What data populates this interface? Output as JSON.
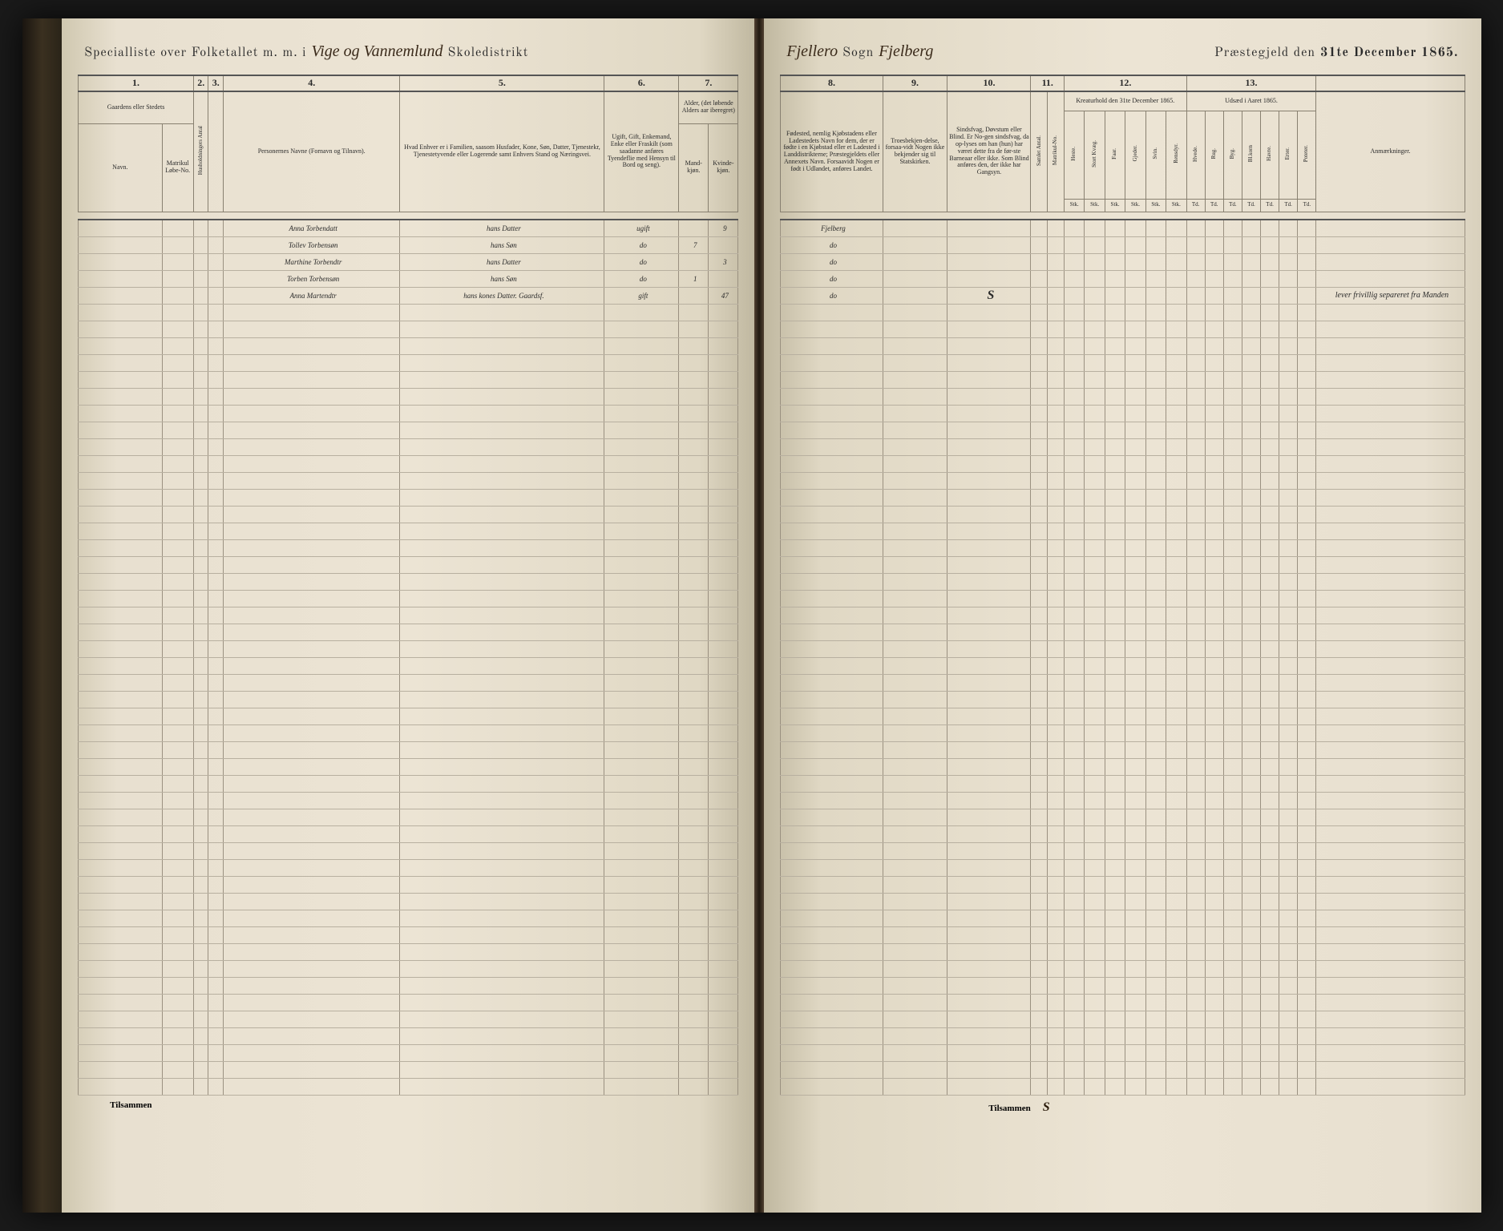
{
  "title": {
    "left_print_1": "Specialliste over Folketallet m. m. i",
    "left_script": "Vige og Vannemlund",
    "left_print_2": "Skoledistrikt",
    "right_script_1": "Fjellero",
    "right_print_1": "Sogn",
    "right_script_2": "Fjelberg",
    "right_print_2": "Præstegjeld den",
    "right_print_3": "31te December 1865."
  },
  "left_cols": {
    "nums": [
      "1.",
      "2.",
      "3.",
      "4.",
      "5.",
      "6.",
      "7."
    ],
    "h1": "Gaardens eller Stedets",
    "h1a": "Navn.",
    "h1b": "Matrikul Løbe-No.",
    "h2": "Husholdningers Antal",
    "h3": "",
    "h4": "Personernes Navne (Fornavn og Tilnavn).",
    "h5": "Hvad Enhver er i Familien, saasom Husfader, Kone, Søn, Datter, Tjenestekr, Tjenestetyvende eller Logerende samt Enhvers Stand og Næringsvei.",
    "h6": "Ugift, Gift, Enkemand, Enke eller Fraskilt (som saadanne anføres Tyendeflie med Hensyn til Bord og seng).",
    "h7_top": "Alder, (det løbende Alders aar iberegret)",
    "h7a": "Mand-kjøn.",
    "h7b": "Kvinde-kjøn."
  },
  "right_cols": {
    "nums": [
      "8.",
      "9.",
      "10.",
      "11.",
      "12.",
      "13."
    ],
    "h8": "Fødested, nemlig Kjøbstadens eller Ladestedets Navn for dem, der er fødte i en Kjøbstad eller et Ladested i Landdistrikterne; Præstegjeldets eller Annexets Navn. Forsaavidt Nogen er født i Udlandet, anføres Landet.",
    "h9": "Troesbekjen-delse, forsaa-vidt Nogen ikke bekjender sig til Statskirken.",
    "h10": "Sindsfvag, Døvstum eller Blind. Er No-gen sindsfvag, da op-lyses om han (hun) har været dette fra de før-ste Barneaar eller ikke. Som Blind anføres den, der ikke har Gangsyn.",
    "h11a": "Samlet Antal.",
    "h11b": "Matrikul-No.",
    "h12": "Kreaturhold den 31te December 1865.",
    "h12_subs": [
      "Heste.",
      "Stort Kvæg.",
      "Faar.",
      "Gjeder.",
      "Svin.",
      "Rensdyr."
    ],
    "h12_sub2": "Stk.",
    "h13": "Udsæd i Aaret 1865.",
    "h13_subs": [
      "Hvede.",
      "Rug.",
      "Byg.",
      "Bl.korn",
      "Havre.",
      "Erter.",
      "Poteter."
    ],
    "h13_sub2": "Td.",
    "h_anm": "Anmærkninger."
  },
  "rows": [
    {
      "name": "Anna Torbendatt",
      "rel": "hans Datter",
      "stat": "ugift",
      "m": "",
      "k": "9",
      "birth": "Fjelberg",
      "anm": ""
    },
    {
      "name": "Tollev Torbensøn",
      "rel": "hans Søn",
      "stat": "do",
      "m": "7",
      "k": "",
      "birth": "do",
      "anm": ""
    },
    {
      "name": "Marthine Torbendtr",
      "rel": "hans Datter",
      "stat": "do",
      "m": "",
      "k": "3",
      "birth": "do",
      "anm": ""
    },
    {
      "name": "Torben Torbensøn",
      "rel": "hans Søn",
      "stat": "do",
      "m": "1",
      "k": "",
      "birth": "do",
      "anm": ""
    },
    {
      "name": "Anna Martendtr",
      "rel": "hans kones Datter. Gaardsf.",
      "stat": "gift",
      "m": "",
      "k": "47",
      "birth": "do",
      "anm": "lever frivillig separeret fra Manden"
    }
  ],
  "right_row5_col10": "S",
  "footer_left": "Tilsammen",
  "footer_right": "Tilsammen",
  "footer_right_val": "S",
  "empty_rows": 47
}
